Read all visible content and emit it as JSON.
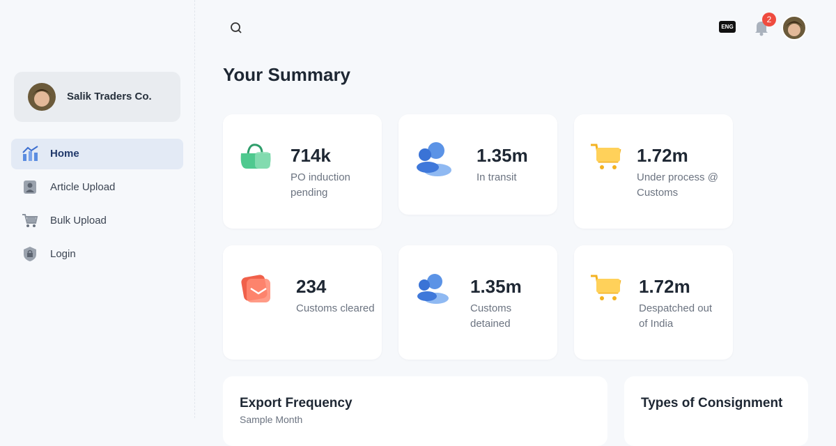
{
  "sidebar": {
    "company": "Salik Traders Co.",
    "nav": [
      "Home",
      "Article Upload",
      "Bulk Upload",
      "Login"
    ]
  },
  "topbar": {
    "language": "ENG",
    "notifications": "2"
  },
  "summary": {
    "title": "Your Summary",
    "cards": [
      {
        "value": "714k",
        "label": "PO induction pending"
      },
      {
        "value": "1.35m",
        "label": "In transit"
      },
      {
        "value": "1.72m",
        "label": "Under process @ Customs"
      },
      {
        "value": "234",
        "label": "Customs cleared"
      },
      {
        "value": "1.35m",
        "label": "Customs detained"
      },
      {
        "value": "1.72m",
        "label": "Despatched out of India"
      }
    ]
  },
  "panels": [
    {
      "title": "Export Frequency",
      "subtitle": "Sample Month"
    },
    {
      "title": "Types of Consignment"
    }
  ]
}
